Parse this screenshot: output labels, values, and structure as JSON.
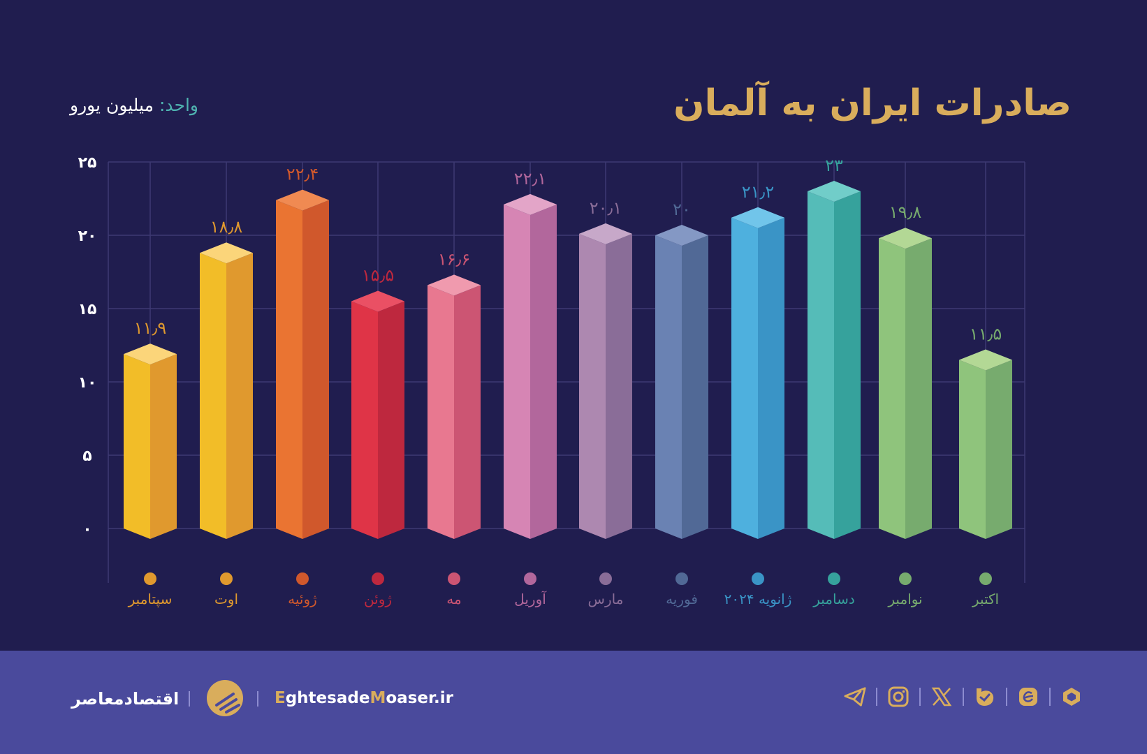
{
  "header": {
    "title": "صادرات ایران به آلمان",
    "unit_label": "واحد:",
    "unit_value": "میلیون یورو"
  },
  "colors": {
    "background": "#201d4f",
    "footer": "#4a4a9c",
    "title": "#d9ad5c",
    "grid": "#3d3a73",
    "axis_text": "#ffffff"
  },
  "chart_data": {
    "type": "bar",
    "title": "صادرات ایران به آلمان",
    "ylabel": "میلیون یورو",
    "xlabel": "",
    "ylim": [
      0,
      25
    ],
    "yticks": [
      0,
      5,
      10,
      15,
      20,
      25
    ],
    "ytick_labels": [
      "۰",
      "۵",
      "۱۰",
      "۱۵",
      "۲۰",
      "۲۵"
    ],
    "grid": true,
    "legend": "none",
    "categories": [
      "سپتامبر",
      "اوت",
      "ژوئیه",
      "ژوئن",
      "مه",
      "آوریل",
      "مارس",
      "فوریه",
      "ژانویه ۲۰۲۴",
      "دسامبر",
      "نوامبر",
      "اکتبر"
    ],
    "values": [
      11.9,
      18.8,
      22.4,
      15.5,
      16.6,
      22.1,
      20.1,
      20,
      21.2,
      23,
      19.8,
      11.5
    ],
    "value_labels": [
      "۱۱٫۹",
      "۱۸٫۸",
      "۲۲٫۴",
      "۱۵٫۵",
      "۱۶٫۶",
      "۲۲٫۱",
      "۲۰٫۱",
      "۲۰",
      "۲۱٫۲",
      "۲۳",
      "۱۹٫۸",
      "۱۱٫۵"
    ],
    "bar_colors": [
      {
        "front": "#f2bd28",
        "side": "#e0992e",
        "top": "#fbd57a",
        "label": "#e0992e"
      },
      {
        "front": "#f2bd28",
        "side": "#e0992e",
        "top": "#fbd57a",
        "label": "#e0992e"
      },
      {
        "front": "#ea7432",
        "side": "#d0582c",
        "top": "#f08a52",
        "label": "#d0582c"
      },
      {
        "front": "#df3447",
        "side": "#be283e",
        "top": "#ea5064",
        "label": "#be283e"
      },
      {
        "front": "#e87890",
        "side": "#cc5573",
        "top": "#f09aae",
        "label": "#cc5573"
      },
      {
        "front": "#d685b4",
        "side": "#b2679c",
        "top": "#e3a5c8",
        "label": "#b2679c"
      },
      {
        "front": "#ad88b0",
        "side": "#8a6d98",
        "top": "#c7a8c9",
        "label": "#8a6d98"
      },
      {
        "front": "#6a82b3",
        "side": "#516996",
        "top": "#8498c4",
        "label": "#516996"
      },
      {
        "front": "#4eb0de",
        "side": "#3a94c6",
        "top": "#71c5ea",
        "label": "#3a94c6"
      },
      {
        "front": "#55bcb8",
        "side": "#36a29c",
        "top": "#71cdc9",
        "label": "#36a29c"
      },
      {
        "front": "#8fc47c",
        "side": "#77ab6e",
        "top": "#b3d895",
        "label": "#77ab6e"
      },
      {
        "front": "#8fc47c",
        "side": "#77ab6e",
        "top": "#b3d895",
        "label": "#77ab6e"
      }
    ]
  },
  "footer": {
    "brand_fa": "اقتصادمعاصر",
    "site_prefix_1": "E",
    "site_part_1": "ghtesade",
    "site_prefix_2": "M",
    "site_part_2": "oaser.ir",
    "socials": [
      "telegram-icon",
      "instagram-icon",
      "x-icon",
      "bale-icon",
      "eitaa-icon",
      "rubika-icon"
    ]
  }
}
